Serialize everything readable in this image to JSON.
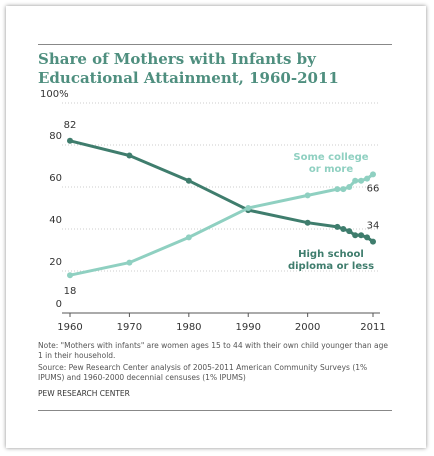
{
  "chart_data": {
    "type": "line",
    "title": "Share of Mothers with Infants by Educational Attainment, 1960-2011",
    "x": [
      1960,
      1970,
      1980,
      1990,
      2000,
      2005,
      2006,
      2007,
      2008,
      2009,
      2010,
      2011
    ],
    "series": [
      {
        "name": "High school diploma or less",
        "color": "#3f7d6d",
        "values": [
          82,
          75,
          63,
          49,
          43,
          41,
          40,
          39,
          37,
          37,
          36,
          34
        ]
      },
      {
        "name": "Some college or more",
        "color": "#8fd0c1",
        "values": [
          18,
          24,
          36,
          50,
          56,
          59,
          59,
          60,
          63,
          63,
          64,
          66
        ]
      }
    ],
    "xlim": [
      1960,
      2011
    ],
    "xticks": [
      1960,
      1970,
      1980,
      1990,
      2000,
      2011
    ],
    "ylim": [
      0,
      100
    ],
    "yticks": [
      0,
      20,
      40,
      60,
      80,
      {
        "value": 100,
        "label": "100%"
      }
    ],
    "grid": true,
    "note": "Note: \"Mothers with infants\" are women ages 15 to 44 with their own child younger than age 1 in their household.",
    "source": "Source: Pew Research Center analysis of 2005-2011 American Community Surveys (1% IPUMS) and 1960-2000 decennial censuses (1% IPUMS)",
    "credit": "PEW RESEARCH CENTER"
  }
}
